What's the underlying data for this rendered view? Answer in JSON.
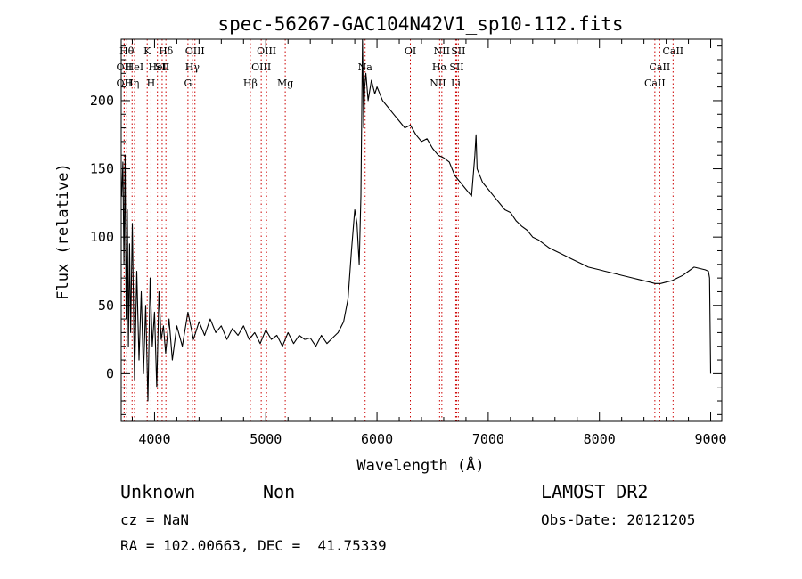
{
  "chart_data": {
    "type": "line",
    "title": "spec-56267-GAC104N42V1_sp10-112.fits",
    "xlabel": "Wavelength (Å)",
    "ylabel": "Flux (relative)",
    "xlim": [
      3700,
      9100
    ],
    "ylim": [
      -35,
      245
    ],
    "xticks": [
      4000,
      5000,
      6000,
      7000,
      8000,
      9000
    ],
    "yticks": [
      0,
      50,
      100,
      150,
      200
    ],
    "xtick_labels": [
      "4000",
      "5000",
      "6000",
      "7000",
      "8000",
      "9000"
    ],
    "ytick_labels": [
      "0",
      "50",
      "100",
      "150",
      "200"
    ],
    "grid": false,
    "series": [
      {
        "x": [
          3705,
          3715,
          3725,
          3735,
          3745,
          3755,
          3765,
          3775,
          3785,
          3800,
          3820,
          3840,
          3860,
          3880,
          3900,
          3920,
          3940,
          3960,
          3980,
          4000,
          4020,
          4040,
          4060,
          4080,
          4100,
          4130,
          4160,
          4200,
          4250,
          4300,
          4350,
          4400,
          4450,
          4500,
          4550,
          4600,
          4650,
          4700,
          4750,
          4800,
          4850,
          4900,
          4950,
          5000,
          5050,
          5100,
          5150,
          5200,
          5250,
          5300,
          5350,
          5400,
          5450,
          5500,
          5550,
          5600,
          5650,
          5700,
          5740,
          5770,
          5800,
          5820,
          5840,
          5855,
          5870,
          5880,
          5890,
          5900,
          5920,
          5950,
          5980,
          6000,
          6050,
          6100,
          6150,
          6200,
          6250,
          6300,
          6350,
          6400,
          6450,
          6500,
          6550,
          6600,
          6650,
          6700,
          6750,
          6800,
          6850,
          6880,
          6890,
          6900,
          6950,
          7000,
          7050,
          7100,
          7150,
          7200,
          7250,
          7300,
          7350,
          7400,
          7450,
          7500,
          7550,
          7600,
          7650,
          7700,
          7750,
          7800,
          7850,
          7900,
          7950,
          8000,
          8050,
          8100,
          8150,
          8200,
          8250,
          8300,
          8350,
          8400,
          8450,
          8500,
          8550,
          8600,
          8650,
          8700,
          8750,
          8800,
          8850,
          8900,
          8950,
          8980,
          8990,
          9000
        ],
        "y": [
          130,
          155,
          80,
          160,
          40,
          120,
          20,
          95,
          30,
          110,
          -5,
          75,
          10,
          60,
          0,
          50,
          -20,
          70,
          20,
          45,
          -10,
          60,
          25,
          35,
          15,
          40,
          10,
          35,
          20,
          45,
          25,
          38,
          28,
          40,
          30,
          35,
          25,
          33,
          28,
          35,
          25,
          30,
          22,
          32,
          25,
          28,
          20,
          30,
          22,
          28,
          25,
          26,
          20,
          28,
          22,
          26,
          30,
          38,
          55,
          90,
          120,
          110,
          80,
          130,
          245,
          180,
          210,
          220,
          200,
          215,
          205,
          210,
          200,
          195,
          190,
          185,
          180,
          182,
          175,
          170,
          172,
          165,
          160,
          158,
          155,
          145,
          140,
          135,
          130,
          160,
          175,
          150,
          140,
          135,
          130,
          125,
          120,
          118,
          112,
          108,
          105,
          100,
          98,
          95,
          92,
          90,
          88,
          86,
          84,
          82,
          80,
          78,
          77,
          76,
          75,
          74,
          73,
          72,
          71,
          70,
          69,
          68,
          67,
          66,
          66,
          67,
          68,
          70,
          72,
          75,
          78,
          77,
          76,
          75,
          70,
          0
        ]
      }
    ],
    "line_markers": [
      {
        "wl": 3727,
        "label": "OII",
        "row": 2
      },
      {
        "wl": 3727,
        "label": "OII",
        "row": 3
      },
      {
        "wl": 3750,
        "label": "Hθ",
        "row": 1
      },
      {
        "wl": 3798,
        "label": "Hη",
        "row": 3
      },
      {
        "wl": 3820,
        "label": "HeI",
        "row": 2
      },
      {
        "wl": 3934,
        "label": "K",
        "row": 1
      },
      {
        "wl": 3968,
        "label": "H",
        "row": 3
      },
      {
        "wl": 4026,
        "label": "HeI",
        "row": 2
      },
      {
        "wl": 4068,
        "label": "SII",
        "row": 2
      },
      {
        "wl": 4102,
        "label": "Hδ",
        "row": 1
      },
      {
        "wl": 4300,
        "label": "G",
        "row": 3
      },
      {
        "wl": 4340,
        "label": "Hγ",
        "row": 2
      },
      {
        "wl": 4363,
        "label": "OIII",
        "row": 1
      },
      {
        "wl": 4861,
        "label": "Hβ",
        "row": 3
      },
      {
        "wl": 4959,
        "label": "OIII",
        "row": 2
      },
      {
        "wl": 5007,
        "label": "OIII",
        "row": 1
      },
      {
        "wl": 5175,
        "label": "Mg",
        "row": 3
      },
      {
        "wl": 5893,
        "label": "Na",
        "row": 2
      },
      {
        "wl": 6300,
        "label": "OI",
        "row": 1
      },
      {
        "wl": 6548,
        "label": "NII",
        "row": 3
      },
      {
        "wl": 6563,
        "label": "Hα",
        "row": 2
      },
      {
        "wl": 6583,
        "label": "NII",
        "row": 1
      },
      {
        "wl": 6716,
        "label": "SII",
        "row": 2
      },
      {
        "wl": 6708,
        "label": "Li",
        "row": 3
      },
      {
        "wl": 6731,
        "label": "SII",
        "row": 1
      },
      {
        "wl": 8498,
        "label": "CaII",
        "row": 3
      },
      {
        "wl": 8542,
        "label": "CaII",
        "row": 2
      },
      {
        "wl": 8662,
        "label": "CaII",
        "row": 1
      }
    ]
  },
  "info": {
    "class": "Unknown",
    "subclass": "Non",
    "survey": "LAMOST DR2",
    "cz": "cz = NaN",
    "obs_date": "Obs-Date: 20121205",
    "coords": "RA = 102.00663, DEC =  41.75339"
  },
  "colors": {
    "marker": "#cc0000",
    "axis": "#000000",
    "series": "#000000"
  }
}
